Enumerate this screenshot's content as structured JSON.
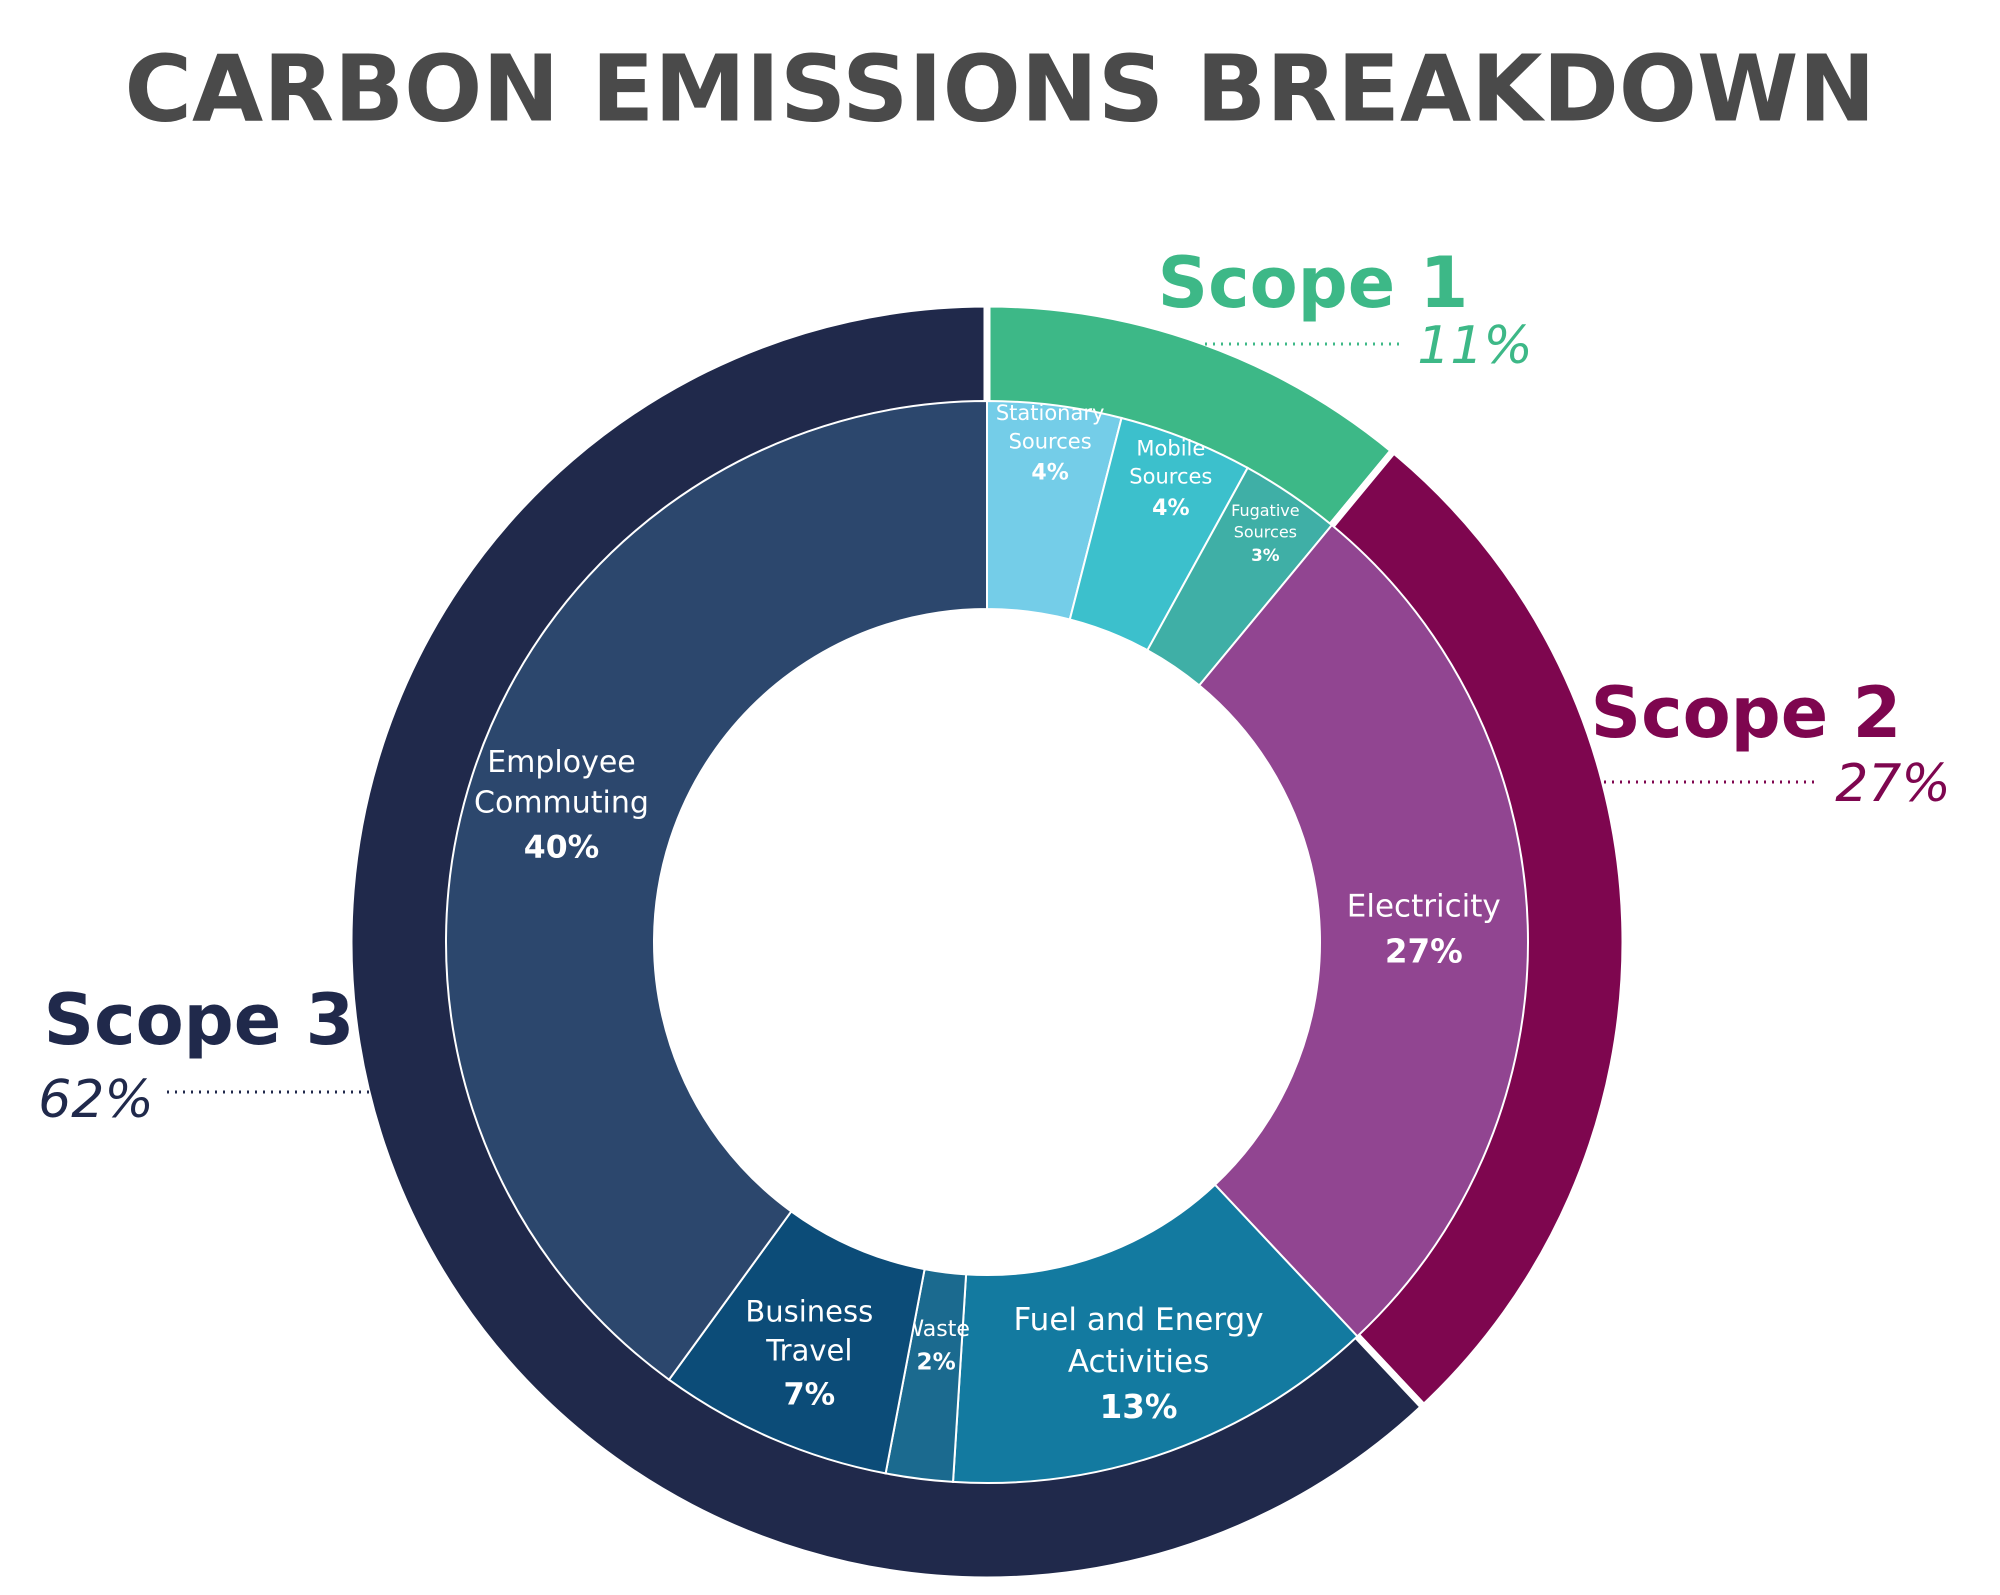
{
  "chart_data": {
    "type": "nested-donut",
    "title": "CARBON EMISSIONS BREAKDOWN",
    "outer": {
      "categories": [
        "Scope 1",
        "Scope 2",
        "Scope 3"
      ],
      "values": [
        11,
        27,
        62
      ],
      "value_labels": [
        "11%",
        "27%",
        "62%"
      ],
      "colors": [
        "#3db887",
        "#7e064f",
        "#20294b"
      ]
    },
    "inner": {
      "categories": [
        [
          "Stationary",
          "Sources"
        ],
        [
          "Mobile",
          "Sources"
        ],
        [
          "Fugative",
          "Sources"
        ],
        [
          "Electricity"
        ],
        [
          "Fuel and Energy",
          "Activities"
        ],
        [
          "Waste"
        ],
        [
          "Business",
          "Travel"
        ],
        [
          "Employee",
          "Commuting"
        ]
      ],
      "values": [
        4,
        4,
        3,
        27,
        13,
        2,
        7,
        40
      ],
      "value_labels": [
        "4%",
        "4%",
        "3%",
        "27%",
        "13%",
        "2%",
        "7%",
        "40%"
      ],
      "colors": [
        "#74cde8",
        "#3cc0cc",
        "#3fafa6",
        "#914591",
        "#137aa0",
        "#1b6a8f",
        "#0c4c78",
        "#2c476d"
      ]
    }
  }
}
